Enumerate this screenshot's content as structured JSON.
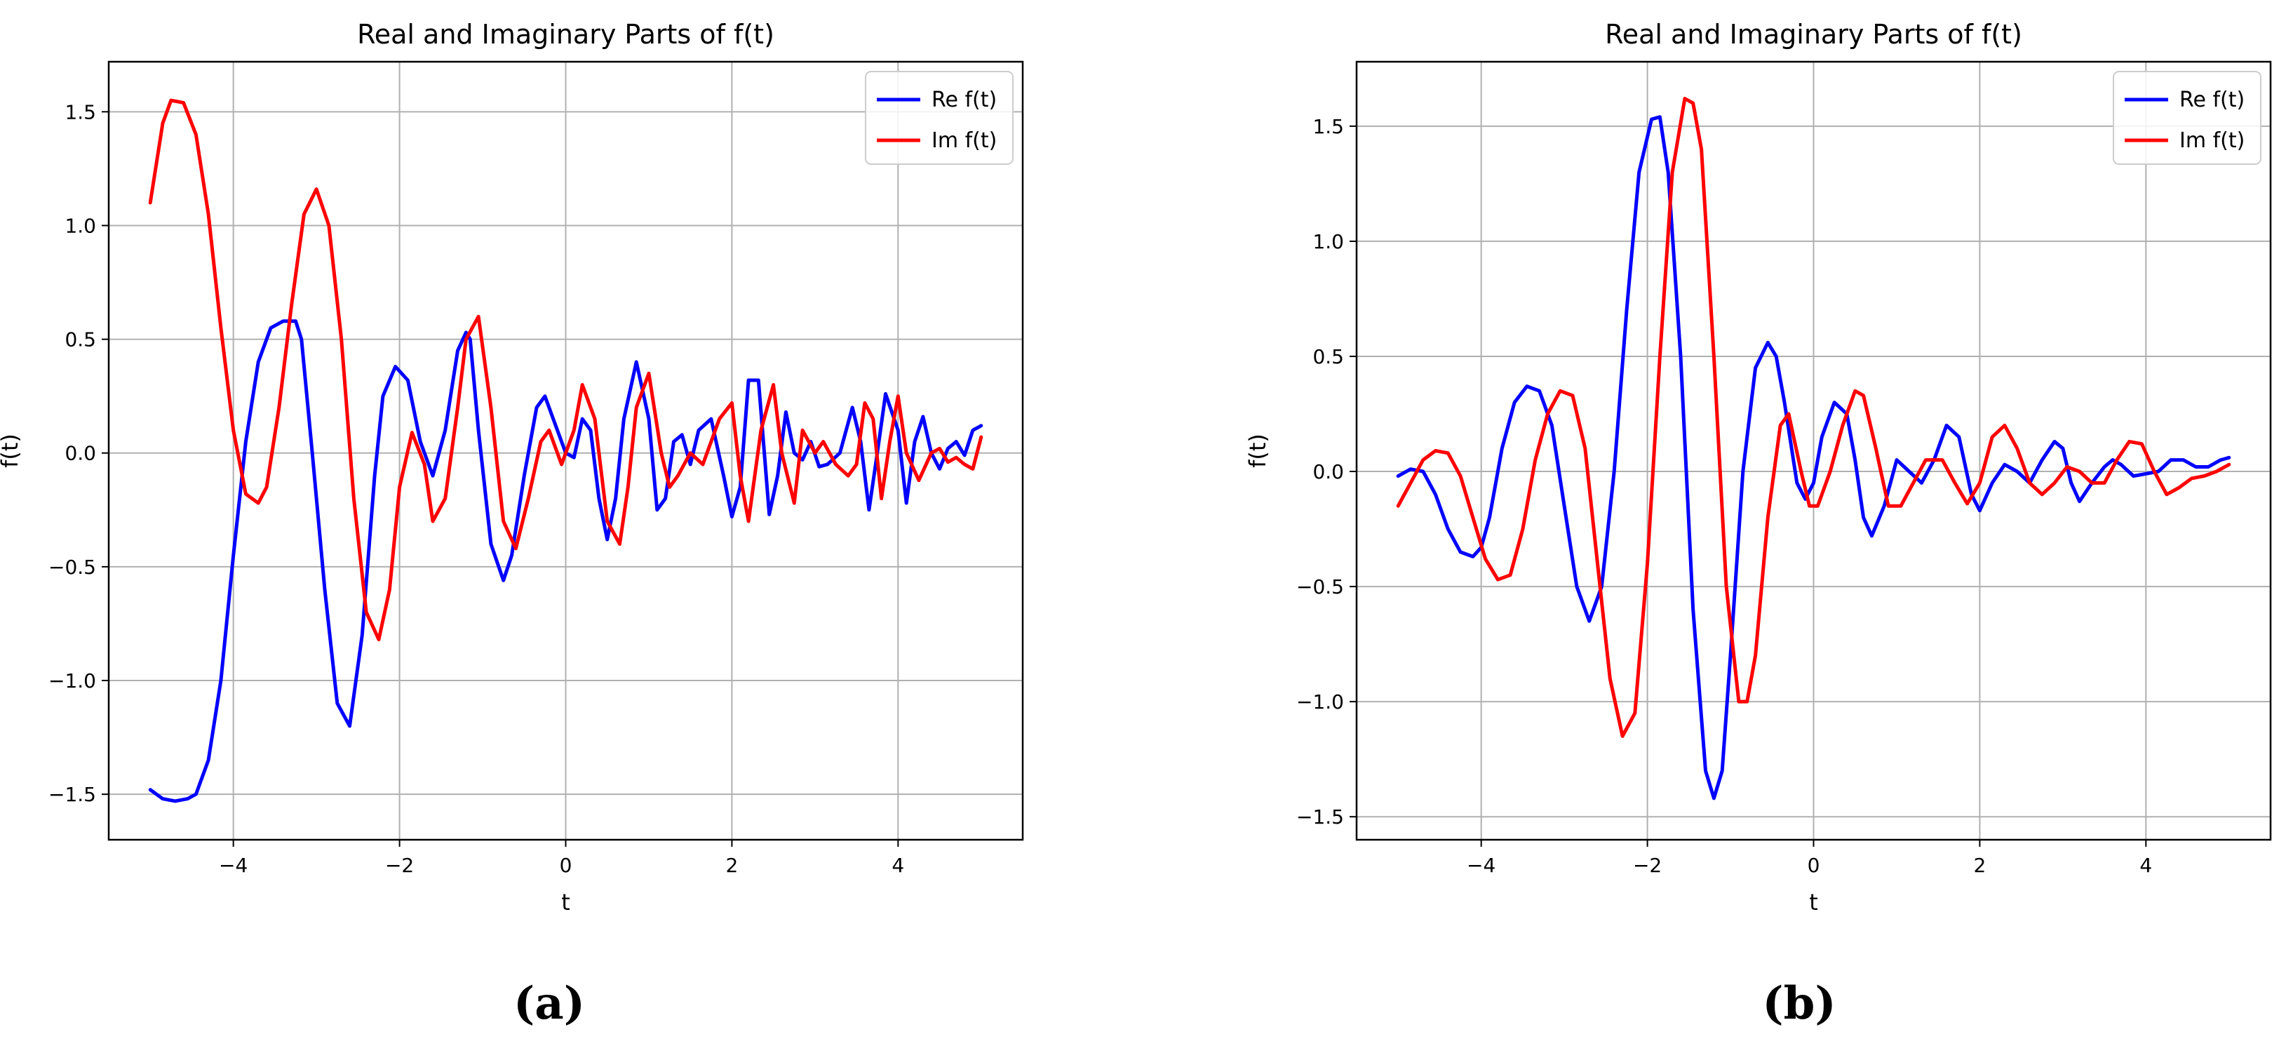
{
  "panel_labels": [
    "(a)",
    "(b)"
  ],
  "chart_data": [
    {
      "type": "line",
      "title": "Real and Imaginary Parts of f(t)",
      "xlabel": "t",
      "ylabel": "f(t)",
      "xlim": [
        -5.5,
        5.5
      ],
      "ylim": [
        -1.7,
        1.72
      ],
      "xticks": [
        -4,
        -2,
        0,
        2,
        4
      ],
      "xtick_labels": [
        "−4",
        "−2",
        "0",
        "2",
        "4"
      ],
      "yticks": [
        -1.5,
        -1.0,
        -0.5,
        0.0,
        0.5,
        1.0,
        1.5
      ],
      "ytick_labels": [
        "−1.5",
        "−1.0",
        "−0.5",
        "0.0",
        "0.5",
        "1.0",
        "1.5"
      ],
      "grid": true,
      "legend_position": "top-right",
      "series": [
        {
          "name": "Re f(t)",
          "color": "#0000ff",
          "x": [
            -5.0,
            -4.85,
            -4.7,
            -4.55,
            -4.45,
            -4.3,
            -4.15,
            -4.0,
            -3.85,
            -3.7,
            -3.55,
            -3.4,
            -3.25,
            -3.18,
            -3.05,
            -2.9,
            -2.75,
            -2.6,
            -2.45,
            -2.3,
            -2.2,
            -2.05,
            -1.9,
            -1.75,
            -1.6,
            -1.45,
            -1.3,
            -1.2,
            -1.15,
            -1.05,
            -0.9,
            -0.75,
            -0.65,
            -0.5,
            -0.35,
            -0.25,
            -0.15,
            0.0,
            0.1,
            0.2,
            0.3,
            0.4,
            0.5,
            0.6,
            0.7,
            0.85,
            1.0,
            1.1,
            1.2,
            1.3,
            1.4,
            1.5,
            1.6,
            1.75,
            1.9,
            2.0,
            2.1,
            2.2,
            2.32,
            2.45,
            2.55,
            2.65,
            2.75,
            2.85,
            2.95,
            3.05,
            3.15,
            3.3,
            3.45,
            3.55,
            3.65,
            3.75,
            3.85,
            4.0,
            4.1,
            4.2,
            4.3,
            4.4,
            4.5,
            4.6,
            4.7,
            4.8,
            4.9,
            5.0
          ],
          "y": [
            -1.48,
            -1.52,
            -1.53,
            -1.52,
            -1.5,
            -1.35,
            -1.0,
            -0.45,
            0.05,
            0.4,
            0.55,
            0.58,
            0.58,
            0.5,
            0.0,
            -0.6,
            -1.1,
            -1.2,
            -0.8,
            -0.1,
            0.25,
            0.38,
            0.32,
            0.05,
            -0.1,
            0.1,
            0.45,
            0.53,
            0.5,
            0.1,
            -0.4,
            -0.56,
            -0.45,
            -0.1,
            0.2,
            0.25,
            0.15,
            0.0,
            -0.02,
            0.15,
            0.1,
            -0.2,
            -0.38,
            -0.2,
            0.15,
            0.4,
            0.15,
            -0.25,
            -0.2,
            0.05,
            0.08,
            -0.05,
            0.1,
            0.15,
            -0.1,
            -0.28,
            -0.15,
            0.32,
            0.32,
            -0.27,
            -0.1,
            0.18,
            0.0,
            -0.03,
            0.05,
            -0.06,
            -0.05,
            0.0,
            0.2,
            0.05,
            -0.25,
            0.0,
            0.26,
            0.1,
            -0.22,
            0.05,
            0.16,
            0.0,
            -0.07,
            0.02,
            0.05,
            -0.01,
            0.1,
            0.12
          ]
        },
        {
          "name": "Im f(t)",
          "color": "#ff0000",
          "x": [
            -5.0,
            -4.85,
            -4.75,
            -4.6,
            -4.45,
            -4.3,
            -4.15,
            -4.0,
            -3.85,
            -3.7,
            -3.6,
            -3.45,
            -3.3,
            -3.15,
            -3.0,
            -2.85,
            -2.7,
            -2.55,
            -2.4,
            -2.25,
            -2.12,
            -2.0,
            -1.85,
            -1.7,
            -1.6,
            -1.45,
            -1.3,
            -1.2,
            -1.05,
            -0.9,
            -0.75,
            -0.6,
            -0.45,
            -0.3,
            -0.2,
            -0.05,
            0.1,
            0.2,
            0.35,
            0.5,
            0.65,
            0.75,
            0.85,
            1.0,
            1.15,
            1.25,
            1.35,
            1.5,
            1.65,
            1.85,
            2.0,
            2.1,
            2.2,
            2.35,
            2.5,
            2.6,
            2.75,
            2.85,
            3.0,
            3.1,
            3.25,
            3.4,
            3.5,
            3.6,
            3.7,
            3.8,
            3.9,
            4.0,
            4.1,
            4.25,
            4.4,
            4.5,
            4.6,
            4.7,
            4.8,
            4.9,
            5.0
          ],
          "y": [
            1.1,
            1.45,
            1.55,
            1.54,
            1.4,
            1.05,
            0.55,
            0.1,
            -0.18,
            -0.22,
            -0.15,
            0.2,
            0.65,
            1.05,
            1.16,
            1.0,
            0.5,
            -0.2,
            -0.7,
            -0.82,
            -0.6,
            -0.15,
            0.09,
            -0.05,
            -0.3,
            -0.2,
            0.2,
            0.5,
            0.6,
            0.2,
            -0.3,
            -0.42,
            -0.2,
            0.05,
            0.1,
            -0.05,
            0.1,
            0.3,
            0.15,
            -0.3,
            -0.4,
            -0.15,
            0.2,
            0.35,
            0.0,
            -0.15,
            -0.1,
            0.0,
            -0.05,
            0.15,
            0.22,
            -0.1,
            -0.3,
            0.1,
            0.3,
            0.0,
            -0.22,
            0.1,
            0.0,
            0.05,
            -0.05,
            -0.1,
            -0.05,
            0.22,
            0.15,
            -0.2,
            0.05,
            0.25,
            0.0,
            -0.12,
            0.0,
            0.02,
            -0.04,
            -0.02,
            -0.05,
            -0.07,
            0.07
          ]
        }
      ]
    },
    {
      "type": "line",
      "title": "Real and Imaginary Parts of f(t)",
      "xlabel": "t",
      "ylabel": "f(t)",
      "xlim": [
        -5.5,
        5.5
      ],
      "ylim": [
        -1.6,
        1.78
      ],
      "xticks": [
        -4,
        -2,
        0,
        2,
        4
      ],
      "xtick_labels": [
        "−4",
        "−2",
        "0",
        "2",
        "4"
      ],
      "yticks": [
        -1.5,
        -1.0,
        -0.5,
        0.0,
        0.5,
        1.0,
        1.5
      ],
      "ytick_labels": [
        "−1.5",
        "−1.0",
        "−0.5",
        "0.0",
        "0.5",
        "1.0",
        "1.5"
      ],
      "grid": true,
      "legend_position": "top-right",
      "series": [
        {
          "name": "Re f(t)",
          "color": "#0000ff",
          "x": [
            -5.0,
            -4.85,
            -4.7,
            -4.55,
            -4.4,
            -4.25,
            -4.1,
            -4.0,
            -3.9,
            -3.75,
            -3.6,
            -3.45,
            -3.3,
            -3.15,
            -3.0,
            -2.85,
            -2.7,
            -2.55,
            -2.4,
            -2.25,
            -2.1,
            -1.95,
            -1.85,
            -1.75,
            -1.6,
            -1.45,
            -1.3,
            -1.2,
            -1.1,
            -1.0,
            -0.85,
            -0.7,
            -0.55,
            -0.45,
            -0.35,
            -0.2,
            -0.1,
            0.0,
            0.1,
            0.25,
            0.4,
            0.5,
            0.6,
            0.7,
            0.85,
            1.0,
            1.15,
            1.3,
            1.45,
            1.6,
            1.75,
            1.9,
            2.0,
            2.15,
            2.3,
            2.45,
            2.6,
            2.75,
            2.9,
            3.0,
            3.1,
            3.2,
            3.35,
            3.5,
            3.6,
            3.7,
            3.85,
            4.0,
            4.15,
            4.3,
            4.45,
            4.6,
            4.75,
            4.9,
            5.0
          ],
          "y": [
            -0.02,
            0.01,
            0.0,
            -0.1,
            -0.25,
            -0.35,
            -0.37,
            -0.33,
            -0.2,
            0.1,
            0.3,
            0.37,
            0.35,
            0.2,
            -0.15,
            -0.5,
            -0.65,
            -0.5,
            0.0,
            0.7,
            1.3,
            1.53,
            1.54,
            1.3,
            0.5,
            -0.6,
            -1.3,
            -1.42,
            -1.3,
            -0.8,
            0.0,
            0.45,
            0.56,
            0.5,
            0.3,
            -0.05,
            -0.12,
            -0.05,
            0.15,
            0.3,
            0.25,
            0.05,
            -0.2,
            -0.28,
            -0.15,
            0.05,
            0.0,
            -0.05,
            0.05,
            0.2,
            0.15,
            -0.1,
            -0.17,
            -0.05,
            0.03,
            0.0,
            -0.05,
            0.05,
            0.13,
            0.1,
            -0.05,
            -0.13,
            -0.05,
            0.02,
            0.05,
            0.03,
            -0.02,
            -0.01,
            0.0,
            0.05,
            0.05,
            0.02,
            0.02,
            0.05,
            0.06
          ]
        },
        {
          "name": "Im f(t)",
          "color": "#ff0000",
          "x": [
            -5.0,
            -4.85,
            -4.7,
            -4.55,
            -4.4,
            -4.25,
            -4.1,
            -3.95,
            -3.8,
            -3.65,
            -3.5,
            -3.35,
            -3.2,
            -3.05,
            -2.9,
            -2.75,
            -2.6,
            -2.45,
            -2.3,
            -2.15,
            -2.0,
            -1.85,
            -1.7,
            -1.55,
            -1.45,
            -1.35,
            -1.2,
            -1.05,
            -0.9,
            -0.8,
            -0.7,
            -0.55,
            -0.4,
            -0.3,
            -0.15,
            -0.05,
            0.05,
            0.2,
            0.35,
            0.5,
            0.6,
            0.75,
            0.9,
            1.05,
            1.2,
            1.35,
            1.55,
            1.7,
            1.85,
            2.0,
            2.15,
            2.3,
            2.45,
            2.6,
            2.75,
            2.9,
            3.05,
            3.2,
            3.35,
            3.5,
            3.65,
            3.8,
            3.95,
            4.1,
            4.25,
            4.4,
            4.55,
            4.7,
            4.85,
            5.0
          ],
          "y": [
            -0.15,
            -0.05,
            0.05,
            0.09,
            0.08,
            -0.02,
            -0.2,
            -0.38,
            -0.47,
            -0.45,
            -0.25,
            0.05,
            0.25,
            0.35,
            0.33,
            0.1,
            -0.4,
            -0.9,
            -1.15,
            -1.05,
            -0.4,
            0.5,
            1.3,
            1.62,
            1.6,
            1.4,
            0.5,
            -0.5,
            -1.0,
            -1.0,
            -0.8,
            -0.2,
            0.2,
            0.25,
            0.0,
            -0.15,
            -0.15,
            0.0,
            0.2,
            0.35,
            0.33,
            0.1,
            -0.15,
            -0.15,
            -0.05,
            0.05,
            0.05,
            -0.05,
            -0.14,
            -0.05,
            0.15,
            0.2,
            0.1,
            -0.05,
            -0.1,
            -0.05,
            0.02,
            0.0,
            -0.05,
            -0.05,
            0.05,
            0.13,
            0.12,
            0.0,
            -0.1,
            -0.07,
            -0.03,
            -0.02,
            0.0,
            0.03
          ]
        }
      ]
    }
  ]
}
